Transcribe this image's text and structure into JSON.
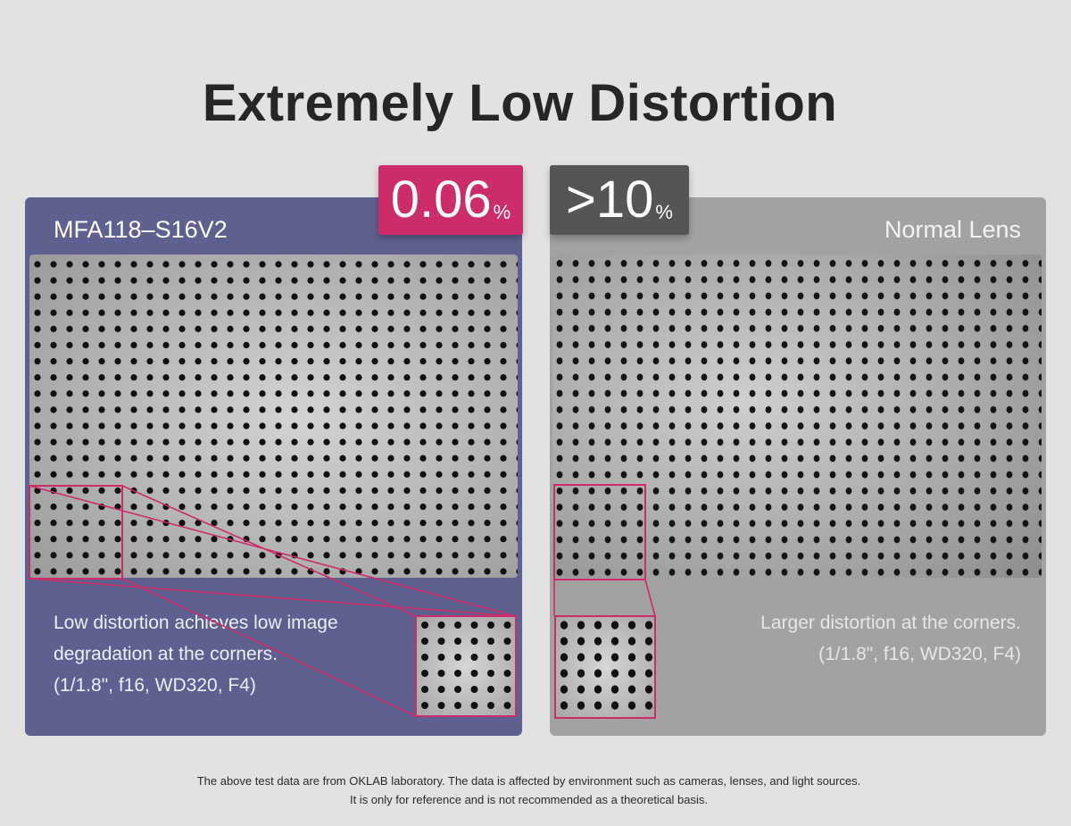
{
  "title": "Extremely Low Distortion",
  "left_panel": {
    "badge_value": "0.06",
    "badge_unit": "%",
    "lens_name": "MFA118–S16V2",
    "desc_line1": "Low distortion achieves low image",
    "desc_line2": "degradation at the corners.",
    "desc_line3": "(1/1.8\", f16, WD320, F4)",
    "panel_color": "#5e6090",
    "badge_color": "#cc2c6a"
  },
  "right_panel": {
    "badge_value": ">10",
    "badge_unit": "%",
    "lens_name": "Normal Lens",
    "desc_line1": "Larger distortion at the corners.",
    "desc_line2": "(1/1.8\", f16, WD320, F4)",
    "panel_color": "#a2a2a2",
    "badge_color": "#555555"
  },
  "highlight_color": "#cc2c6a",
  "footnote": {
    "line1": "The above test data are from OKLAB laboratory. The data is affected by environment such as cameras, lenses, and light sources.",
    "line2": "It is only for reference and is not recommended as a theoretical basis."
  }
}
